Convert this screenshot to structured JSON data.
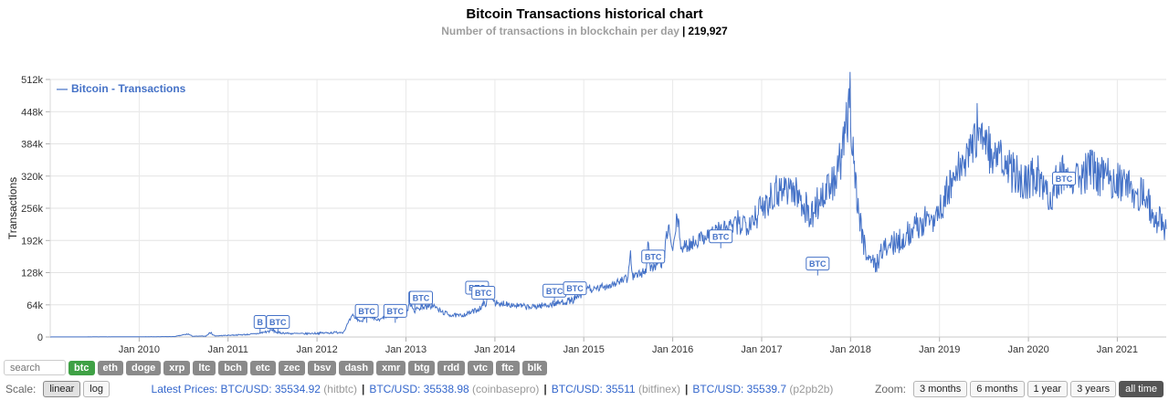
{
  "header": {
    "title": "Bitcoin Transactions historical chart",
    "subtitle_label": "Number of transactions in blockchain per day",
    "subtitle_separator": "|",
    "subtitle_value": "219,927"
  },
  "chart_data": {
    "type": "line",
    "title": "Bitcoin Transactions historical chart",
    "subtitle": "Number of transactions in blockchain per day | 219,927",
    "legend": "Bitcoin - Transactions",
    "legend_position": "top-left",
    "ylabel": "Transactions",
    "grid": true,
    "xlim": [
      2009.0,
      2021.55
    ],
    "ylim": [
      0,
      512000
    ],
    "series_color": "#4572C7",
    "y_ticks": [
      {
        "label": "0",
        "value": 0
      },
      {
        "label": "64k",
        "value": 64000
      },
      {
        "label": "128k",
        "value": 128000
      },
      {
        "label": "192k",
        "value": 192000
      },
      {
        "label": "256k",
        "value": 256000
      },
      {
        "label": "320k",
        "value": 320000
      },
      {
        "label": "384k",
        "value": 384000
      },
      {
        "label": "448k",
        "value": 448000
      },
      {
        "label": "512k",
        "value": 512000
      }
    ],
    "x_ticks": [
      {
        "label": "Jan 2010",
        "value": 2010
      },
      {
        "label": "Jan 2011",
        "value": 2011
      },
      {
        "label": "Jan 2012",
        "value": 2012
      },
      {
        "label": "Jan 2013",
        "value": 2013
      },
      {
        "label": "Jan 2014",
        "value": 2014
      },
      {
        "label": "Jan 2015",
        "value": 2015
      },
      {
        "label": "Jan 2016",
        "value": 2016
      },
      {
        "label": "Jan 2017",
        "value": 2017
      },
      {
        "label": "Jan 2018",
        "value": 2018
      },
      {
        "label": "Jan 2019",
        "value": 2019
      },
      {
        "label": "Jan 2020",
        "value": 2020
      },
      {
        "label": "Jan 2021",
        "value": 2021
      }
    ],
    "points": [
      [
        2009.0,
        100
      ],
      [
        2009.3,
        200
      ],
      [
        2009.6,
        300
      ],
      [
        2009.9,
        450
      ],
      [
        2010.0,
        500
      ],
      [
        2010.2,
        650
      ],
      [
        2010.4,
        900
      ],
      [
        2010.55,
        6000
      ],
      [
        2010.6,
        1500
      ],
      [
        2010.75,
        1800
      ],
      [
        2010.8,
        9000
      ],
      [
        2010.85,
        2200
      ],
      [
        2010.95,
        3000
      ],
      [
        2011.0,
        3500
      ],
      [
        2011.15,
        4500
      ],
      [
        2011.3,
        6000
      ],
      [
        2011.45,
        11000
      ],
      [
        2011.5,
        14000
      ],
      [
        2011.55,
        9000
      ],
      [
        2011.7,
        7000
      ],
      [
        2011.85,
        6500
      ],
      [
        2012.0,
        7500
      ],
      [
        2012.15,
        8500
      ],
      [
        2012.3,
        10000
      ],
      [
        2012.35,
        28000
      ],
      [
        2012.4,
        42000
      ],
      [
        2012.45,
        36000
      ],
      [
        2012.5,
        30000
      ],
      [
        2012.55,
        44000
      ],
      [
        2012.6,
        38000
      ],
      [
        2012.7,
        33000
      ],
      [
        2012.8,
        44000
      ],
      [
        2012.9,
        40000
      ],
      [
        2012.95,
        48000
      ],
      [
        2013.0,
        46000
      ],
      [
        2013.05,
        68000
      ],
      [
        2013.1,
        52000
      ],
      [
        2013.15,
        58000
      ],
      [
        2013.2,
        62000
      ],
      [
        2013.25,
        58000
      ],
      [
        2013.3,
        64000
      ],
      [
        2013.35,
        56000
      ],
      [
        2013.4,
        50000
      ],
      [
        2013.5,
        44000
      ],
      [
        2013.6,
        42000
      ],
      [
        2013.7,
        47000
      ],
      [
        2013.8,
        54000
      ],
      [
        2013.85,
        60000
      ],
      [
        2013.9,
        68000
      ],
      [
        2013.95,
        93000
      ],
      [
        2014.0,
        70000
      ],
      [
        2014.05,
        62000
      ],
      [
        2014.1,
        68000
      ],
      [
        2014.2,
        64000
      ],
      [
        2014.3,
        61000
      ],
      [
        2014.4,
        59000
      ],
      [
        2014.5,
        62000
      ],
      [
        2014.6,
        64000
      ],
      [
        2014.7,
        67000
      ],
      [
        2014.8,
        71000
      ],
      [
        2014.9,
        74000
      ],
      [
        2015.0,
        88000
      ],
      [
        2015.05,
        100000
      ],
      [
        2015.1,
        92000
      ],
      [
        2015.2,
        99000
      ],
      [
        2015.3,
        104000
      ],
      [
        2015.4,
        110000
      ],
      [
        2015.5,
        116000
      ],
      [
        2015.52,
        175000
      ],
      [
        2015.55,
        120000
      ],
      [
        2015.6,
        123000
      ],
      [
        2015.7,
        131000
      ],
      [
        2015.72,
        198000
      ],
      [
        2015.75,
        135000
      ],
      [
        2015.8,
        141000
      ],
      [
        2015.9,
        152000
      ],
      [
        2015.95,
        225000
      ],
      [
        2016.0,
        165000
      ],
      [
        2016.05,
        240000
      ],
      [
        2016.1,
        175000
      ],
      [
        2016.2,
        185000
      ],
      [
        2016.3,
        195000
      ],
      [
        2016.4,
        205000
      ],
      [
        2016.5,
        212000
      ],
      [
        2016.6,
        217000
      ],
      [
        2016.7,
        222000
      ],
      [
        2016.8,
        228000
      ],
      [
        2016.9,
        238000
      ],
      [
        2017.0,
        255000
      ],
      [
        2017.1,
        283000
      ],
      [
        2017.2,
        295000
      ],
      [
        2017.3,
        300000
      ],
      [
        2017.4,
        283000
      ],
      [
        2017.5,
        258000
      ],
      [
        2017.55,
        232000
      ],
      [
        2017.6,
        262000
      ],
      [
        2017.7,
        283000
      ],
      [
        2017.8,
        302000
      ],
      [
        2017.85,
        330000
      ],
      [
        2017.9,
        355000
      ],
      [
        2017.95,
        410000
      ],
      [
        2017.99,
        478000
      ],
      [
        2018.02,
        400000
      ],
      [
        2018.06,
        300000
      ],
      [
        2018.1,
        235000
      ],
      [
        2018.15,
        185000
      ],
      [
        2018.2,
        163000
      ],
      [
        2018.28,
        141000
      ],
      [
        2018.35,
        172000
      ],
      [
        2018.45,
        183000
      ],
      [
        2018.55,
        192000
      ],
      [
        2018.65,
        205000
      ],
      [
        2018.75,
        222000
      ],
      [
        2018.85,
        232000
      ],
      [
        2018.95,
        242000
      ],
      [
        2019.0,
        252000
      ],
      [
        2019.1,
        292000
      ],
      [
        2019.2,
        325000
      ],
      [
        2019.3,
        355000
      ],
      [
        2019.4,
        388000
      ],
      [
        2019.45,
        438000
      ],
      [
        2019.5,
        395000
      ],
      [
        2019.55,
        375000
      ],
      [
        2019.65,
        355000
      ],
      [
        2019.75,
        338000
      ],
      [
        2019.85,
        322000
      ],
      [
        2019.95,
        312000
      ],
      [
        2020.0,
        312000
      ],
      [
        2020.1,
        322000
      ],
      [
        2020.2,
        302000
      ],
      [
        2020.25,
        272000
      ],
      [
        2020.3,
        308000
      ],
      [
        2020.4,
        330000
      ],
      [
        2020.5,
        326000
      ],
      [
        2020.6,
        321000
      ],
      [
        2020.7,
        331000
      ],
      [
        2020.8,
        321000
      ],
      [
        2020.9,
        316000
      ],
      [
        2021.0,
        312000
      ],
      [
        2021.1,
        302000
      ],
      [
        2021.2,
        292000
      ],
      [
        2021.3,
        282000
      ],
      [
        2021.38,
        255000
      ],
      [
        2021.45,
        235000
      ],
      [
        2021.52,
        220000
      ]
    ],
    "flags": [
      {
        "t": 2011.36,
        "v": 30000,
        "label": "B"
      },
      {
        "t": 2011.56,
        "v": 30000,
        "label": "BTC"
      },
      {
        "t": 2012.56,
        "v": 52000,
        "label": "BTC"
      },
      {
        "t": 2012.88,
        "v": 52000,
        "label": "BTC"
      },
      {
        "t": 2013.1,
        "v": 78000,
        "label": "B"
      },
      {
        "t": 2013.17,
        "v": 78000,
        "label": "BTC"
      },
      {
        "t": 2013.8,
        "v": 98000,
        "label": "BTC"
      },
      {
        "t": 2013.87,
        "v": 88000,
        "label": "BTC"
      },
      {
        "t": 2014.67,
        "v": 92000,
        "label": "BTC"
      },
      {
        "t": 2014.9,
        "v": 97000,
        "label": "BTC"
      },
      {
        "t": 2015.78,
        "v": 160000,
        "label": "BTC"
      },
      {
        "t": 2016.54,
        "v": 200000,
        "label": "BTC"
      },
      {
        "t": 2017.63,
        "v": 146000,
        "label": "BTC"
      },
      {
        "t": 2020.4,
        "v": 315000,
        "label": "BTC"
      }
    ]
  },
  "coin_bar": {
    "search_placeholder": "search",
    "selected": "btc",
    "coins": [
      "btc",
      "eth",
      "doge",
      "xrp",
      "ltc",
      "bch",
      "etc",
      "zec",
      "bsv",
      "dash",
      "xmr",
      "btg",
      "rdd",
      "vtc",
      "ftc",
      "blk"
    ]
  },
  "scale": {
    "label": "Scale:",
    "options": [
      "linear",
      "log"
    ],
    "selected": "linear"
  },
  "prices": {
    "prefix": "Latest Prices:",
    "separator": "|",
    "items": [
      {
        "pair": "BTC/USD: 35534.92",
        "exchange": "(hitbtc)"
      },
      {
        "pair": "BTC/USD: 35538.98",
        "exchange": "(coinbasepro)"
      },
      {
        "pair": "BTC/USD: 35511",
        "exchange": "(bitfinex)"
      },
      {
        "pair": "BTC/USD: 35539.7",
        "exchange": "(p2pb2b)"
      }
    ]
  },
  "zoom": {
    "label": "Zoom:",
    "options": [
      "3 months",
      "6 months",
      "1 year",
      "3 years",
      "all time"
    ],
    "selected": "all time"
  },
  "colors": {
    "series": "#4572C7",
    "link": "#3366CC",
    "coin_default_bg": "#8A8A8A",
    "coin_selected_bg": "#3FA145",
    "zoom_selected_bg": "#555555",
    "subtitle_gray": "#9E9E9E"
  }
}
